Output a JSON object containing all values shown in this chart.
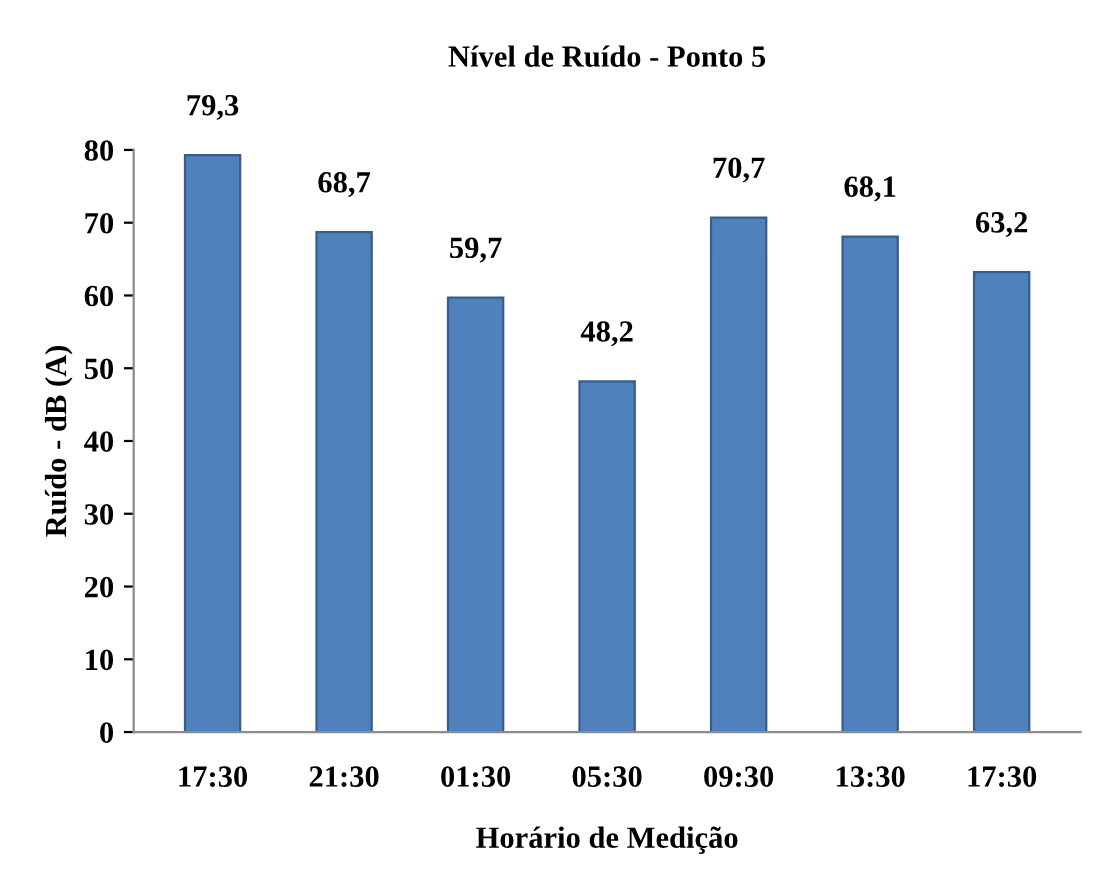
{
  "chart_data": {
    "type": "bar",
    "title": "Nível de Ruído - Ponto 5",
    "xlabel": "Horário de Medição",
    "ylabel": "Ruído - dB (A)",
    "categories": [
      "17:30",
      "21:30",
      "01:30",
      "05:30",
      "09:30",
      "13:30",
      "17:30"
    ],
    "values": [
      79.3,
      68.7,
      59.7,
      48.2,
      70.7,
      68.1,
      63.2
    ],
    "value_labels": [
      "79,3",
      "68,7",
      "59,7",
      "48,2",
      "70,7",
      "68,1",
      "63,2"
    ],
    "color": "#4f81bd",
    "ylim": [
      0,
      80
    ],
    "yticks": [
      0,
      10,
      20,
      30,
      40,
      50,
      60,
      70,
      80
    ],
    "grid": false,
    "legend": false
  }
}
